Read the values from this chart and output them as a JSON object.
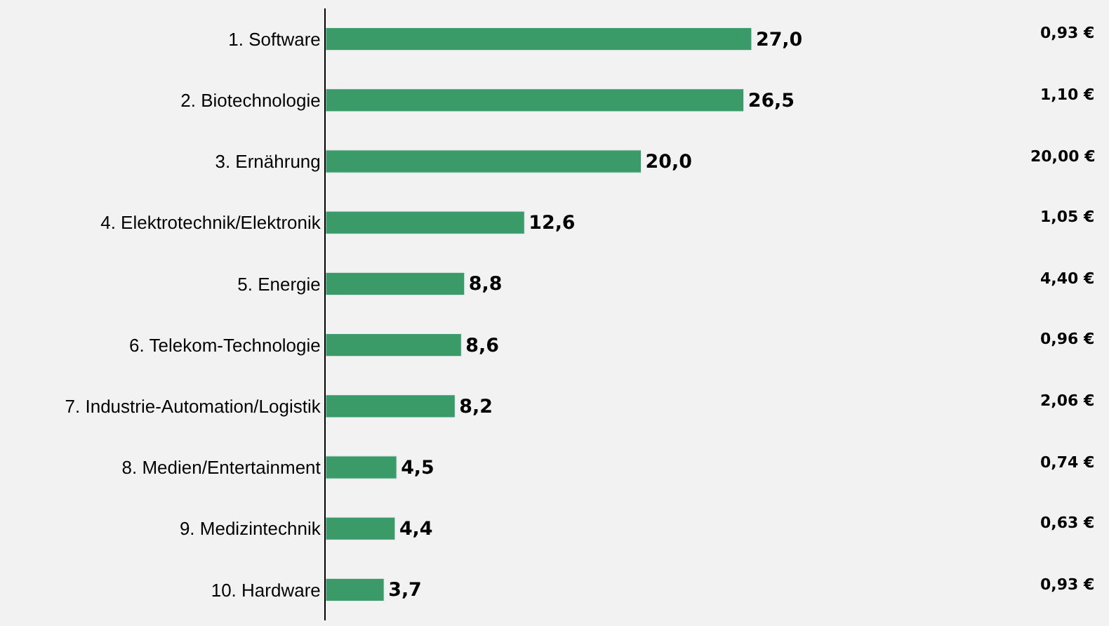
{
  "chart_data": {
    "type": "bar",
    "orientation": "horizontal",
    "categories": [
      "1. Software",
      "2. Biotechnologie",
      "3. Ernährung",
      "4. Elektrotechnik/Elektronik",
      "5. Energie",
      "6. Telekom-Technologie",
      "7. Industrie-Automation/Logistik",
      "8. Medien/Entertainment",
      "9. Medizintechnik",
      "10. Hardware"
    ],
    "values": [
      27.0,
      26.5,
      20.0,
      12.6,
      8.8,
      8.6,
      8.2,
      4.5,
      4.4,
      3.7
    ],
    "value_labels": [
      "27,0",
      "26,5",
      "20,0",
      "12,6",
      "8,8",
      "8,6",
      "8,2",
      "4,5",
      "4,4",
      "3,7"
    ],
    "color": "#3a9a68",
    "annotations": [
      "0,93 €",
      "1,10 €",
      "20,00 €",
      "1,05 €",
      "4,40 €",
      "0,96 €",
      "2,06 €",
      "0,74 €",
      "0,63 €",
      "0,93 €"
    ],
    "grid": false,
    "legend": false
  }
}
